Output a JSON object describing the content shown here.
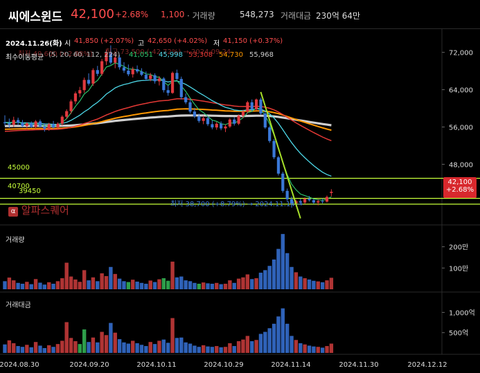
{
  "header": {
    "name": "씨에스윈드",
    "price": "42,100",
    "change_pct": "+2.68%",
    "change_abs": "1,100",
    "volume_label": "· 거래량",
    "volume_value": "548,273",
    "amount_label": "거래대금",
    "amount_value": "230억 64만"
  },
  "info_line": {
    "date": "2024.11.26(화)",
    "open_label": "시",
    "open_value": "41,850 (+2.07%)",
    "high_label": "고",
    "high_value": "42,650 (+4.02%)",
    "low_label": "저",
    "low_value": "41,150 (+0.37%)"
  },
  "ma_line": {
    "label": "최수이동평균",
    "periods": "(5, 20, 60, 112, 224)",
    "ma5": "41,051",
    "ma20": "45,998",
    "ma60": "53,308",
    "ma112": "54,730",
    "ma224": "55,968",
    "overlay_low": "최저 40,600 (+2.88%)",
    "overlay_high": "최고 73,500 (-42.72%) → 2024.09.24"
  },
  "annotations": {
    "low_marker": "최저 38,700 (+8.79%) → 2024.11.14 →",
    "level_45000": "45000",
    "level_40700": "40700",
    "level_39450": "39450",
    "watermark": "알파스퀘어",
    "last_price_tag": "42,100",
    "last_pct_tag": "+2.68%"
  },
  "panes": {
    "volume_title": "거래량",
    "amount_title": "거래대금"
  },
  "colors": {
    "up": "#e0393e",
    "down": "#3a78d8",
    "ma5": "#2ecc71",
    "ma20": "#4dd8e8",
    "ma60": "#e53935",
    "ma112": "#ff9800",
    "ma224": "#cfcfcf",
    "level": "#c6ff3a",
    "trend": "#a8e02a"
  },
  "chart_data": [
    {
      "type": "candlestick",
      "price_axis": {
        "ticks": [
          48000,
          56000,
          64000,
          72000
        ],
        "tick_labels": [
          "48,000",
          "56,000",
          "64,000",
          "72,000"
        ],
        "ylim": [
          35000,
          77000
        ]
      },
      "x_axis": {
        "tick_labels": [
          "2024.08.30",
          "2024.09.20",
          "2024.10.11",
          "2024.10.29",
          "2024.11.14",
          "2024.11.30",
          "2024.12.12"
        ]
      },
      "horizontal_levels": [
        45000,
        40700,
        39450
      ],
      "candles": [
        {
          "o": 57000,
          "h": 58500,
          "l": 56200,
          "c": 56800
        },
        {
          "o": 56800,
          "h": 57800,
          "l": 55800,
          "c": 56500
        },
        {
          "o": 56500,
          "h": 58200,
          "l": 56000,
          "c": 57500
        },
        {
          "o": 57500,
          "h": 58000,
          "l": 56400,
          "c": 56900
        },
        {
          "o": 56900,
          "h": 57500,
          "l": 55900,
          "c": 56200
        },
        {
          "o": 56200,
          "h": 57000,
          "l": 55500,
          "c": 56800
        },
        {
          "o": 56800,
          "h": 57200,
          "l": 55800,
          "c": 56000
        },
        {
          "o": 56000,
          "h": 57500,
          "l": 55600,
          "c": 57200
        },
        {
          "o": 57200,
          "h": 57600,
          "l": 55900,
          "c": 56100
        },
        {
          "o": 56100,
          "h": 56800,
          "l": 55000,
          "c": 55600
        },
        {
          "o": 55600,
          "h": 56900,
          "l": 55200,
          "c": 56600
        },
        {
          "o": 56600,
          "h": 57300,
          "l": 55600,
          "c": 55900
        },
        {
          "o": 55900,
          "h": 57000,
          "l": 55400,
          "c": 56700
        },
        {
          "o": 56700,
          "h": 58500,
          "l": 56300,
          "c": 58200
        },
        {
          "o": 58200,
          "h": 59800,
          "l": 57700,
          "c": 59400
        },
        {
          "o": 59400,
          "h": 61900,
          "l": 58800,
          "c": 61500
        },
        {
          "o": 61500,
          "h": 63600,
          "l": 60900,
          "c": 63200
        },
        {
          "o": 63200,
          "h": 64600,
          "l": 62400,
          "c": 63900
        },
        {
          "o": 63900,
          "h": 66600,
          "l": 63300,
          "c": 66100
        },
        {
          "o": 66100,
          "h": 67500,
          "l": 64900,
          "c": 65300
        },
        {
          "o": 65300,
          "h": 68600,
          "l": 64800,
          "c": 68200
        },
        {
          "o": 68200,
          "h": 69100,
          "l": 66900,
          "c": 67400
        },
        {
          "o": 67400,
          "h": 70600,
          "l": 67000,
          "c": 70100
        },
        {
          "o": 70100,
          "h": 72600,
          "l": 69300,
          "c": 71900
        },
        {
          "o": 71900,
          "h": 73500,
          "l": 69400,
          "c": 69800
        },
        {
          "o": 69800,
          "h": 71600,
          "l": 68600,
          "c": 70900
        },
        {
          "o": 70900,
          "h": 71400,
          "l": 68300,
          "c": 68800
        },
        {
          "o": 68800,
          "h": 69900,
          "l": 67600,
          "c": 68100
        },
        {
          "o": 68100,
          "h": 69400,
          "l": 66900,
          "c": 67300
        },
        {
          "o": 67300,
          "h": 68900,
          "l": 66600,
          "c": 68400
        },
        {
          "o": 68400,
          "h": 69200,
          "l": 67500,
          "c": 67900
        },
        {
          "o": 67900,
          "h": 68600,
          "l": 66900,
          "c": 67200
        },
        {
          "o": 67200,
          "h": 67900,
          "l": 65900,
          "c": 66300
        },
        {
          "o": 66300,
          "h": 67600,
          "l": 65800,
          "c": 67100
        },
        {
          "o": 67100,
          "h": 67500,
          "l": 65300,
          "c": 65800
        },
        {
          "o": 65800,
          "h": 66900,
          "l": 64900,
          "c": 66400
        },
        {
          "o": 66400,
          "h": 66700,
          "l": 63400,
          "c": 63900
        },
        {
          "o": 63900,
          "h": 64900,
          "l": 62700,
          "c": 63300
        },
        {
          "o": 63300,
          "h": 67900,
          "l": 63100,
          "c": 67600
        },
        {
          "o": 67600,
          "h": 68300,
          "l": 65900,
          "c": 66300
        },
        {
          "o": 66300,
          "h": 66800,
          "l": 61900,
          "c": 62400
        },
        {
          "o": 62400,
          "h": 63200,
          "l": 60900,
          "c": 61300
        },
        {
          "o": 61300,
          "h": 61900,
          "l": 58900,
          "c": 59300
        },
        {
          "o": 59300,
          "h": 60100,
          "l": 57900,
          "c": 58300
        },
        {
          "o": 58300,
          "h": 58900,
          "l": 56900,
          "c": 57300
        },
        {
          "o": 57300,
          "h": 58400,
          "l": 56600,
          "c": 57900
        },
        {
          "o": 57900,
          "h": 58300,
          "l": 56200,
          "c": 56600
        },
        {
          "o": 56600,
          "h": 57400,
          "l": 55500,
          "c": 55900
        },
        {
          "o": 55900,
          "h": 57100,
          "l": 55400,
          "c": 56700
        },
        {
          "o": 56700,
          "h": 57200,
          "l": 55300,
          "c": 55700
        },
        {
          "o": 55700,
          "h": 56500,
          "l": 54900,
          "c": 56100
        },
        {
          "o": 56100,
          "h": 57900,
          "l": 55800,
          "c": 57600
        },
        {
          "o": 57600,
          "h": 58100,
          "l": 56300,
          "c": 56700
        },
        {
          "o": 56700,
          "h": 58700,
          "l": 56400,
          "c": 58400
        },
        {
          "o": 58400,
          "h": 59700,
          "l": 57900,
          "c": 59300
        },
        {
          "o": 59300,
          "h": 61600,
          "l": 58900,
          "c": 61300
        },
        {
          "o": 61300,
          "h": 61900,
          "l": 59400,
          "c": 59800
        },
        {
          "o": 59800,
          "h": 62100,
          "l": 59500,
          "c": 61900
        },
        {
          "o": 61900,
          "h": 62300,
          "l": 58600,
          "c": 58900
        },
        {
          "o": 58900,
          "h": 59300,
          "l": 55600,
          "c": 55900
        },
        {
          "o": 55900,
          "h": 56200,
          "l": 52600,
          "c": 53000
        },
        {
          "o": 53000,
          "h": 53400,
          "l": 49100,
          "c": 49500
        },
        {
          "o": 49500,
          "h": 49800,
          "l": 45600,
          "c": 46000
        },
        {
          "o": 46000,
          "h": 46400,
          "l": 41900,
          "c": 42300
        },
        {
          "o": 42300,
          "h": 42800,
          "l": 40100,
          "c": 40500
        },
        {
          "o": 40500,
          "h": 41100,
          "l": 38700,
          "c": 39600
        },
        {
          "o": 39600,
          "h": 40400,
          "l": 38900,
          "c": 40100
        },
        {
          "o": 40100,
          "h": 40600,
          "l": 39300,
          "c": 39800
        },
        {
          "o": 39800,
          "h": 40900,
          "l": 39500,
          "c": 40600
        },
        {
          "o": 40600,
          "h": 41200,
          "l": 40000,
          "c": 40300
        },
        {
          "o": 40300,
          "h": 40600,
          "l": 39500,
          "c": 39800
        },
        {
          "o": 39800,
          "h": 40500,
          "l": 39200,
          "c": 40100
        },
        {
          "o": 40100,
          "h": 40700,
          "l": 39600,
          "c": 40000
        },
        {
          "o": 40000,
          "h": 41300,
          "l": 39800,
          "c": 41000
        },
        {
          "o": 41850,
          "h": 42650,
          "l": 41150,
          "c": 42100
        }
      ]
    },
    {
      "type": "bar",
      "title": "거래량",
      "y_tick_labels": [
        "100만",
        "200만"
      ],
      "y_ticks": [
        1000000,
        2000000
      ],
      "ylim": [
        0,
        2800000
      ],
      "values": [
        380000,
        550000,
        420000,
        300000,
        260000,
        350000,
        240000,
        480000,
        310000,
        220000,
        330000,
        260000,
        380000,
        520000,
        1250000,
        600000,
        460000,
        350000,
        900000,
        420000,
        560000,
        380000,
        750000,
        620000,
        1050000,
        720000,
        500000,
        380000,
        340000,
        450000,
        360000,
        300000,
        260000,
        410000,
        340000,
        470000,
        520000,
        400000,
        1300000,
        560000,
        600000,
        420000,
        380000,
        300000,
        260000,
        320000,
        280000,
        260000,
        300000,
        240000,
        260000,
        420000,
        300000,
        500000,
        560000,
        700000,
        480000,
        520000,
        780000,
        900000,
        1100000,
        1400000,
        1900000,
        2600000,
        1700000,
        1050000,
        800000,
        600000,
        520000,
        460000,
        400000,
        370000,
        330000,
        420000,
        540000
      ],
      "up": [
        0,
        1,
        1,
        0,
        0,
        1,
        0,
        1,
        0,
        0,
        1,
        0,
        1,
        1,
        1,
        1,
        1,
        1,
        1,
        0,
        1,
        0,
        1,
        1,
        0,
        1,
        0,
        0,
        0,
        1,
        0,
        0,
        0,
        1,
        0,
        1,
        0,
        0,
        1,
        0,
        0,
        0,
        0,
        0,
        0,
        1,
        0,
        0,
        1,
        0,
        1,
        1,
        0,
        1,
        1,
        1,
        0,
        1,
        0,
        0,
        0,
        0,
        0,
        0,
        0,
        0,
        1,
        0,
        1,
        0,
        0,
        1,
        0,
        1,
        1
      ],
      "green_indices": [
        28,
        36,
        37,
        44
      ]
    },
    {
      "type": "bar",
      "title": "거래대금",
      "y_tick_labels": [
        "500억",
        "1,000억"
      ],
      "y_ticks": [
        50000000000,
        100000000000
      ],
      "ylim": [
        0,
        140000000000
      ],
      "values": [
        21000000000,
        31000000000,
        24000000000,
        17000000000,
        15000000000,
        20000000000,
        14000000000,
        27000000000,
        18000000000,
        12000000000,
        19000000000,
        15000000000,
        22000000000,
        30000000000,
        76000000000,
        37000000000,
        29000000000,
        22000000000,
        58000000000,
        27000000000,
        38000000000,
        26000000000,
        52000000000,
        44000000000,
        74000000000,
        50000000000,
        34000000000,
        26000000000,
        23000000000,
        30000000000,
        24000000000,
        20000000000,
        17000000000,
        27000000000,
        22000000000,
        30000000000,
        33000000000,
        25000000000,
        86000000000,
        37000000000,
        38000000000,
        26000000000,
        23000000000,
        18000000000,
        15000000000,
        19000000000,
        16000000000,
        15000000000,
        17000000000,
        14000000000,
        15000000000,
        24000000000,
        17000000000,
        29000000000,
        33000000000,
        42000000000,
        29000000000,
        32000000000,
        47000000000,
        52000000000,
        61000000000,
        72000000000,
        90000000000,
        110000000000,
        72000000000,
        42000000000,
        32000000000,
        24000000000,
        21000000000,
        18000000000,
        16000000000,
        15000000000,
        13000000000,
        17000000000,
        23000000000
      ],
      "up": [
        0,
        1,
        1,
        0,
        0,
        1,
        0,
        1,
        0,
        0,
        1,
        0,
        1,
        1,
        1,
        1,
        1,
        1,
        1,
        0,
        1,
        0,
        1,
        1,
        0,
        1,
        0,
        0,
        0,
        1,
        0,
        0,
        0,
        1,
        0,
        1,
        0,
        0,
        1,
        0,
        0,
        0,
        0,
        0,
        0,
        1,
        0,
        0,
        1,
        0,
        1,
        1,
        0,
        1,
        1,
        1,
        0,
        1,
        0,
        0,
        0,
        0,
        0,
        0,
        0,
        0,
        1,
        0,
        1,
        0,
        0,
        1,
        0,
        1,
        1
      ],
      "green_indices": [
        17,
        18
      ]
    }
  ]
}
